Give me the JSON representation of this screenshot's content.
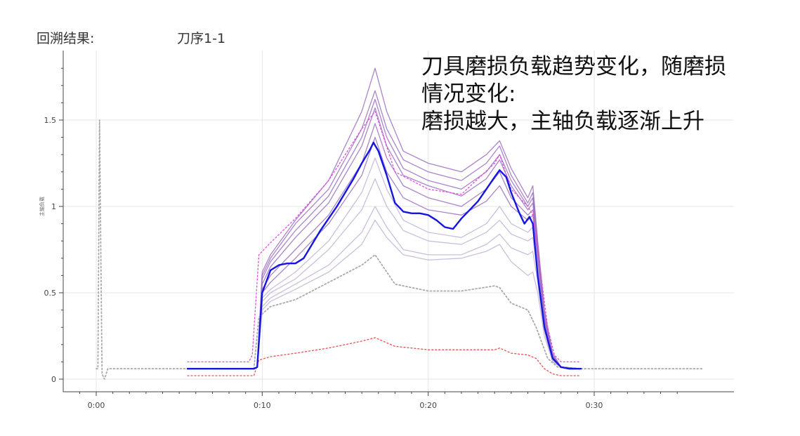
{
  "header": {
    "label": "回溯结果:",
    "value": "刀序1-1"
  },
  "annotation": {
    "lines": [
      "刀具磨损负载趋势变化，随磨损",
      "情况变化:",
      "磨损越大，主轴负载逐渐上升"
    ]
  },
  "chart_data": {
    "type": "line",
    "ylabel": "主轴负载",
    "xlim": [
      0,
      33.6
    ],
    "ylim": [
      -0.06,
      1.9
    ],
    "x_ticks": [
      0,
      10,
      20,
      30
    ],
    "x_tick_labels": [
      "0:00",
      "0:10",
      "0:20",
      "0:30"
    ],
    "y_ticks": [
      0,
      0.5,
      1,
      1.5
    ],
    "y_tick_labels": [
      "0",
      "0.5",
      "1",
      "1.5"
    ],
    "grid": true,
    "legend": "none",
    "colors": {
      "current": "#1515e0",
      "history": "#9b6fc0",
      "history_light": "#c7bcd8",
      "upper": "#e24de0",
      "lower": "#e85050",
      "mean": "#aaaaaa",
      "grid": "#e6e6e6"
    },
    "series": [
      {
        "role": "current",
        "x": [
          5.5,
          9.5,
          9.7,
          10.0,
          10.5,
          11.0,
          11.5,
          12.0,
          12.5,
          13.0,
          13.5,
          14.0,
          14.5,
          15.0,
          15.5,
          16.0,
          16.5,
          16.7,
          17.0,
          17.5,
          18.0,
          18.5,
          19.0,
          19.5,
          20.0,
          20.5,
          21.0,
          21.5,
          22.0,
          22.5,
          23.0,
          23.5,
          24.0,
          24.3,
          24.7,
          25.0,
          25.5,
          25.8,
          26.1,
          26.3,
          26.6,
          27.0,
          27.5,
          28.0,
          28.5,
          29.2
        ],
        "y": [
          0.06,
          0.06,
          0.07,
          0.5,
          0.63,
          0.66,
          0.67,
          0.67,
          0.7,
          0.78,
          0.86,
          0.93,
          1.0,
          1.08,
          1.16,
          1.25,
          1.33,
          1.37,
          1.32,
          1.18,
          1.02,
          0.97,
          0.96,
          0.96,
          0.95,
          0.92,
          0.88,
          0.87,
          0.93,
          0.98,
          1.03,
          1.1,
          1.17,
          1.21,
          1.17,
          1.08,
          0.96,
          0.9,
          0.94,
          0.9,
          0.6,
          0.3,
          0.12,
          0.07,
          0.06,
          0.06
        ]
      },
      {
        "role": "upper-bound",
        "x": [
          5.5,
          9.2,
          9.4,
          9.8,
          10.5,
          12.0,
          14.0,
          16.0,
          16.8,
          18.0,
          20.0,
          22.0,
          24.0,
          24.3,
          25.0,
          26.0,
          26.3,
          26.8,
          27.2,
          27.6,
          28.0,
          29.2
        ],
        "y": [
          0.1,
          0.1,
          0.14,
          0.72,
          0.79,
          0.93,
          1.15,
          1.45,
          1.55,
          1.2,
          1.1,
          1.07,
          1.25,
          1.3,
          1.1,
          1.0,
          0.95,
          0.6,
          0.3,
          0.14,
          0.1,
          0.1
        ]
      },
      {
        "role": "lower-bound",
        "x": [
          5.5,
          9.5,
          9.8,
          10.5,
          12.0,
          14.0,
          16.0,
          16.8,
          18.0,
          20.0,
          22.0,
          24.0,
          24.3,
          25.0,
          26.0,
          26.5,
          27.0,
          27.5,
          28.0,
          29.2
        ],
        "y": [
          0.02,
          0.02,
          0.11,
          0.13,
          0.15,
          0.18,
          0.22,
          0.24,
          0.19,
          0.17,
          0.17,
          0.17,
          0.18,
          0.15,
          0.14,
          0.12,
          0.06,
          0.03,
          0.02,
          0.02
        ]
      },
      {
        "role": "mean",
        "x": [
          0,
          0.1,
          0.2,
          0.35,
          0.5,
          0.7,
          9.5,
          9.8,
          10.5,
          12.0,
          14.0,
          16.0,
          16.8,
          18.0,
          20.0,
          22.0,
          24.0,
          24.3,
          25.0,
          26.0,
          26.5,
          27.2,
          27.8,
          28.5,
          29.2,
          36.5
        ],
        "y": [
          0.06,
          0.06,
          1.5,
          0.03,
          0.0,
          0.06,
          0.06,
          0.36,
          0.42,
          0.46,
          0.56,
          0.66,
          0.72,
          0.55,
          0.51,
          0.51,
          0.54,
          0.53,
          0.44,
          0.4,
          0.3,
          0.12,
          0.07,
          0.06,
          0.06,
          0.06
        ]
      },
      {
        "role": "history",
        "x": [
          5.5,
          9.5,
          9.7,
          10.0,
          10.5,
          12.0,
          14.0,
          16.0,
          16.8,
          17.5,
          18.5,
          20.0,
          22.0,
          23.5,
          24.3,
          25.0,
          26.0,
          26.3,
          26.6,
          27.0,
          27.5,
          28.0,
          29.2
        ],
        "y": [
          0.06,
          0.06,
          0.07,
          0.62,
          0.72,
          0.92,
          1.15,
          1.55,
          1.8,
          1.55,
          1.32,
          1.25,
          1.2,
          1.3,
          1.38,
          1.22,
          1.05,
          1.12,
          0.8,
          0.4,
          0.15,
          0.07,
          0.06
        ]
      },
      {
        "role": "history",
        "x": [
          5.5,
          9.5,
          9.7,
          10.0,
          10.5,
          12.0,
          14.0,
          16.0,
          16.8,
          17.5,
          18.5,
          20.0,
          22.0,
          23.5,
          24.3,
          25.0,
          26.0,
          26.3,
          26.6,
          27.0,
          27.5,
          28.0,
          29.2
        ],
        "y": [
          0.06,
          0.06,
          0.07,
          0.6,
          0.7,
          0.9,
          1.1,
          1.45,
          1.67,
          1.45,
          1.27,
          1.2,
          1.15,
          1.25,
          1.35,
          1.18,
          1.02,
          1.08,
          0.78,
          0.38,
          0.14,
          0.07,
          0.06
        ]
      },
      {
        "role": "history",
        "x": [
          5.5,
          9.5,
          9.7,
          10.0,
          10.5,
          12.0,
          14.0,
          16.0,
          16.8,
          17.5,
          18.5,
          20.0,
          22.0,
          23.5,
          24.3,
          25.0,
          26.0,
          26.3,
          26.6,
          27.0,
          27.5,
          28.0,
          29.2
        ],
        "y": [
          0.06,
          0.06,
          0.07,
          0.58,
          0.68,
          0.86,
          1.06,
          1.4,
          1.62,
          1.4,
          1.22,
          1.15,
          1.1,
          1.2,
          1.3,
          1.15,
          1.0,
          1.05,
          0.76,
          0.36,
          0.13,
          0.07,
          0.06
        ]
      },
      {
        "role": "history",
        "x": [
          5.5,
          9.5,
          9.7,
          10.0,
          10.5,
          12.0,
          14.0,
          16.0,
          16.8,
          17.5,
          18.5,
          20.0,
          22.0,
          23.5,
          24.3,
          25.0,
          26.0,
          26.3,
          26.6,
          27.0,
          27.5,
          28.0,
          29.2
        ],
        "y": [
          0.06,
          0.06,
          0.07,
          0.55,
          0.65,
          0.82,
          1.02,
          1.35,
          1.57,
          1.35,
          1.18,
          1.12,
          1.06,
          1.16,
          1.27,
          1.12,
          0.98,
          1.02,
          0.74,
          0.35,
          0.13,
          0.07,
          0.06
        ]
      },
      {
        "role": "history",
        "x": [
          5.5,
          9.5,
          9.7,
          10.0,
          10.5,
          12.0,
          14.0,
          16.0,
          16.8,
          17.5,
          18.5,
          20.0,
          22.0,
          23.5,
          24.3,
          25.0,
          26.0,
          26.3,
          26.6,
          27.0,
          27.5,
          28.0,
          29.2
        ],
        "y": [
          0.06,
          0.06,
          0.07,
          0.52,
          0.6,
          0.75,
          0.95,
          1.25,
          1.48,
          1.28,
          1.12,
          1.05,
          1.0,
          1.1,
          1.2,
          1.05,
          0.95,
          0.98,
          0.72,
          0.34,
          0.12,
          0.07,
          0.06
        ]
      },
      {
        "role": "history",
        "x": [
          5.5,
          9.5,
          9.7,
          10.0,
          10.5,
          12.0,
          14.0,
          16.0,
          16.8,
          17.5,
          18.5,
          20.0,
          22.0,
          23.5,
          24.3,
          25.0,
          26.0,
          26.3,
          26.6,
          27.0,
          27.5,
          28.0,
          29.2
        ],
        "y": [
          0.06,
          0.06,
          0.07,
          0.5,
          0.56,
          0.7,
          0.9,
          1.18,
          1.4,
          1.2,
          1.05,
          0.98,
          0.95,
          1.03,
          1.12,
          1.0,
          0.92,
          0.95,
          0.7,
          0.33,
          0.12,
          0.07,
          0.06
        ]
      },
      {
        "role": "history-light",
        "x": [
          5.5,
          9.5,
          9.7,
          10.0,
          10.5,
          12.0,
          14.0,
          16.0,
          16.8,
          17.5,
          18.5,
          20.0,
          22.0,
          23.5,
          24.3,
          25.0,
          26.0,
          26.3,
          26.6,
          27.0,
          27.5,
          28.0,
          29.2
        ],
        "y": [
          0.06,
          0.06,
          0.07,
          0.47,
          0.52,
          0.62,
          0.8,
          1.08,
          1.28,
          1.1,
          0.92,
          0.85,
          0.82,
          0.9,
          1.0,
          0.9,
          0.85,
          0.88,
          0.66,
          0.31,
          0.11,
          0.07,
          0.06
        ]
      },
      {
        "role": "history-light",
        "x": [
          5.5,
          9.5,
          9.7,
          10.0,
          10.5,
          12.0,
          14.0,
          16.0,
          16.8,
          17.5,
          18.5,
          20.0,
          22.0,
          23.5,
          24.3,
          25.0,
          26.0,
          26.3,
          26.6,
          27.0,
          27.5,
          28.0,
          29.2
        ],
        "y": [
          0.06,
          0.06,
          0.07,
          0.45,
          0.5,
          0.58,
          0.75,
          0.98,
          1.16,
          1.0,
          0.86,
          0.8,
          0.78,
          0.85,
          0.92,
          0.84,
          0.8,
          0.82,
          0.62,
          0.3,
          0.11,
          0.07,
          0.06
        ]
      },
      {
        "role": "history-light",
        "x": [
          5.5,
          9.5,
          9.7,
          10.0,
          10.5,
          12.0,
          14.0,
          16.0,
          16.8,
          17.5,
          18.5,
          20.0,
          22.0,
          23.5,
          24.3,
          25.0,
          26.0,
          26.3,
          26.6,
          27.0,
          27.5,
          28.0,
          29.2
        ],
        "y": [
          0.06,
          0.06,
          0.07,
          0.42,
          0.47,
          0.55,
          0.66,
          0.85,
          1.0,
          0.88,
          0.75,
          0.72,
          0.72,
          0.78,
          0.84,
          0.76,
          0.72,
          0.74,
          0.56,
          0.28,
          0.1,
          0.07,
          0.06
        ]
      },
      {
        "role": "history-light",
        "x": [
          5.5,
          9.5,
          9.7,
          10.0,
          10.5,
          12.0,
          14.0,
          16.0,
          16.8,
          17.5,
          18.5,
          20.0,
          22.0,
          23.5,
          24.3,
          25.0,
          26.0,
          26.3,
          26.6,
          27.0,
          27.5,
          28.0,
          29.2
        ],
        "y": [
          0.06,
          0.06,
          0.07,
          0.4,
          0.45,
          0.52,
          0.62,
          0.78,
          0.92,
          0.82,
          0.72,
          0.69,
          0.7,
          0.74,
          0.78,
          0.68,
          0.6,
          0.62,
          0.5,
          0.25,
          0.1,
          0.07,
          0.06
        ]
      }
    ]
  }
}
